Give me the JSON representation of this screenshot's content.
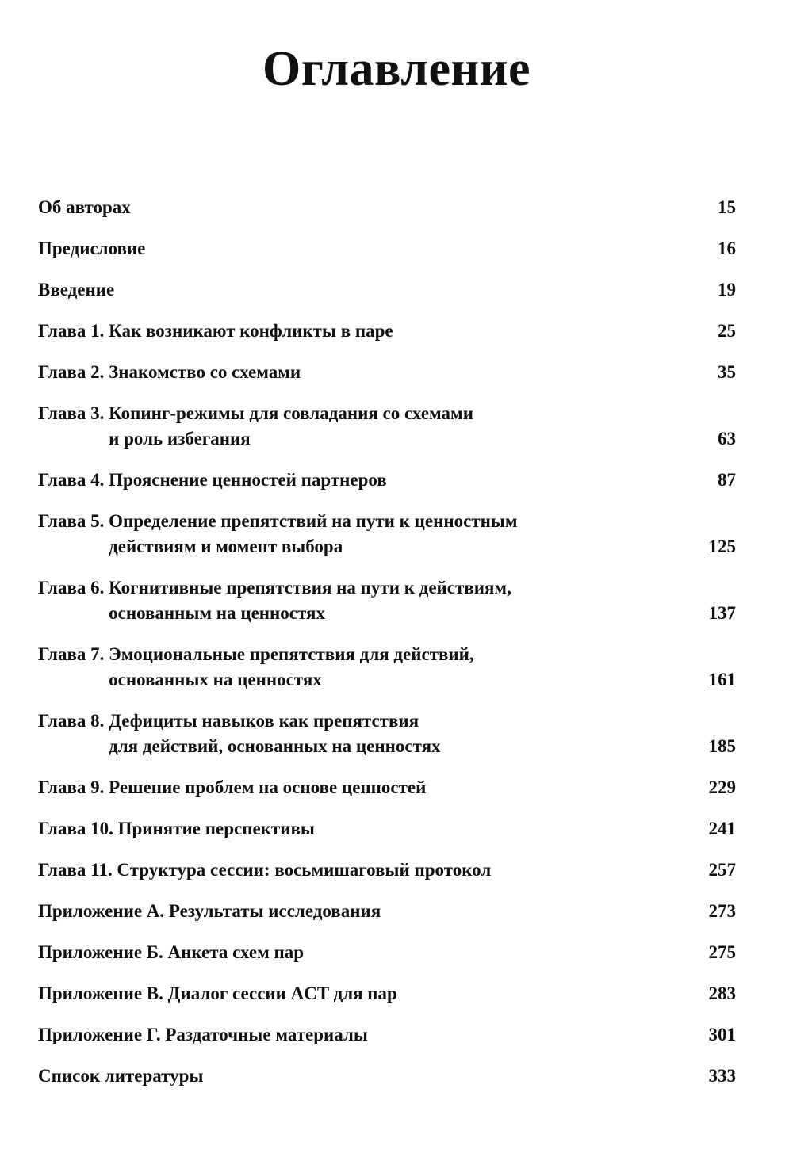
{
  "title": "Оглавление",
  "entries": [
    {
      "label": "",
      "lines": [
        "Об авторах"
      ],
      "page": "15"
    },
    {
      "label": "",
      "lines": [
        "Предисловие"
      ],
      "page": "16"
    },
    {
      "label": "",
      "lines": [
        "Введение"
      ],
      "page": "19"
    },
    {
      "label": "Глава 1. ",
      "lines": [
        "Как возникают конфликты в паре"
      ],
      "page": "25"
    },
    {
      "label": "Глава 2. ",
      "lines": [
        "Знакомство со схемами"
      ],
      "page": "35"
    },
    {
      "label": "Глава 3. ",
      "lines": [
        "Копинг-режимы для совладания со схемами",
        "и роль избегания"
      ],
      "page": "63"
    },
    {
      "label": "Глава 4. ",
      "lines": [
        "Прояснение ценностей партнеров"
      ],
      "page": "87"
    },
    {
      "label": "Глава 5. ",
      "lines": [
        "Определение препятствий на пути к ценностным",
        "действиям и момент выбора"
      ],
      "page": "125"
    },
    {
      "label": "Глава 6. ",
      "lines": [
        "Когнитивные препятствия на пути к действиям,",
        "основанным на ценностях"
      ],
      "page": "137"
    },
    {
      "label": "Глава 7. ",
      "lines": [
        "Эмоциональные препятствия для действий,",
        "основанных на ценностях"
      ],
      "page": "161"
    },
    {
      "label": "Глава 8. ",
      "lines": [
        "Дефициты навыков как препятствия",
        "для действий, основанных на ценностях"
      ],
      "page": "185"
    },
    {
      "label": "Глава 9. ",
      "lines": [
        "Решение проблем на основе ценностей"
      ],
      "page": "229"
    },
    {
      "label": "Глава 10. ",
      "lines": [
        "Принятие перспективы"
      ],
      "page": "241"
    },
    {
      "label": "Глава 11. ",
      "lines": [
        "Структура сессии: восьмишаговый протокол"
      ],
      "page": "257"
    },
    {
      "label": "Приложение А. ",
      "lines": [
        "Результаты исследования"
      ],
      "page": "273"
    },
    {
      "label": "Приложение Б. ",
      "lines": [
        "Анкета схем пар"
      ],
      "page": "275"
    },
    {
      "label": "Приложение В. ",
      "lines": [
        "Диалог сессии ACT для пар"
      ],
      "page": "283"
    },
    {
      "label": "Приложение Г. ",
      "lines": [
        "Раздаточные материалы"
      ],
      "page": "301"
    },
    {
      "label": "",
      "lines": [
        "Список литературы"
      ],
      "page": "333"
    }
  ]
}
